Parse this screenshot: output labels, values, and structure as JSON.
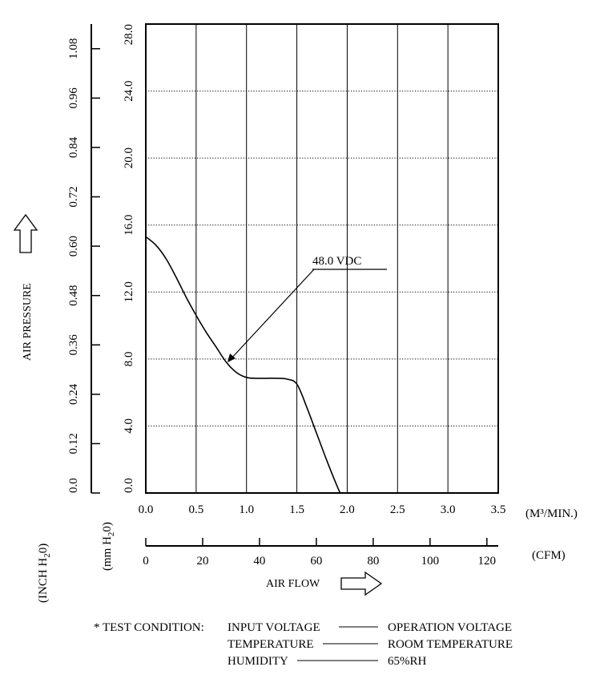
{
  "chart_data": {
    "type": "line",
    "series": [
      {
        "name": "48.0 VDC",
        "x": [
          0.0,
          0.1,
          0.2,
          0.3,
          0.4,
          0.5,
          0.6,
          0.7,
          0.8,
          0.9,
          1.0,
          1.1,
          1.2,
          1.3,
          1.4,
          1.5,
          1.6,
          1.7,
          1.8,
          1.9,
          1.93
        ],
        "y": [
          15.3,
          14.8,
          14.0,
          12.9,
          11.7,
          10.6,
          9.6,
          8.7,
          7.8,
          7.2,
          6.9,
          6.85,
          6.85,
          6.85,
          6.8,
          6.5,
          5.1,
          3.5,
          1.9,
          0.4,
          0.0
        ]
      }
    ],
    "annotation": "48.0 VDC",
    "xlim": [
      0,
      3.5
    ],
    "ylim": [
      0,
      28
    ],
    "x_ticks": [
      "0.0",
      "0.5",
      "1.0",
      "1.5",
      "2.0",
      "2.5",
      "3.0",
      "3.5"
    ],
    "y_ticks_mm": [
      "0.0",
      "4.0",
      "8.0",
      "12.0",
      "16.0",
      "20.0",
      "24.0",
      "28.0"
    ],
    "y_ticks_inch": [
      "0.0",
      "0.12",
      "0.24",
      "0.36",
      "0.48",
      "0.60",
      "0.72",
      "0.84",
      "0.96",
      "1.08"
    ],
    "cfm_ticks": [
      "0",
      "20",
      "40",
      "60",
      "80",
      "100",
      "120"
    ],
    "x_unit": "(M³/MIN.)",
    "cfm_unit": "(CFM)",
    "xlabel": "AIR FLOW",
    "ylabel": "AIR PRESSURE",
    "inch_unit_main": "(INCH H",
    "inch_unit_sub": "2",
    "inch_unit_end": "0)",
    "mm_unit_main": "(mm H",
    "mm_unit_sub": "2",
    "mm_unit_end": "0)",
    "grid": true,
    "test_condition": {
      "title": "* TEST CONDITION:",
      "rows": [
        {
          "label": "INPUT VOLTAGE",
          "value": "OPERATION VOLTAGE"
        },
        {
          "label": "TEMPERATURE",
          "value": "ROOM TEMPERATURE"
        },
        {
          "label": "HUMIDITY",
          "value": "65%RH"
        }
      ]
    }
  }
}
